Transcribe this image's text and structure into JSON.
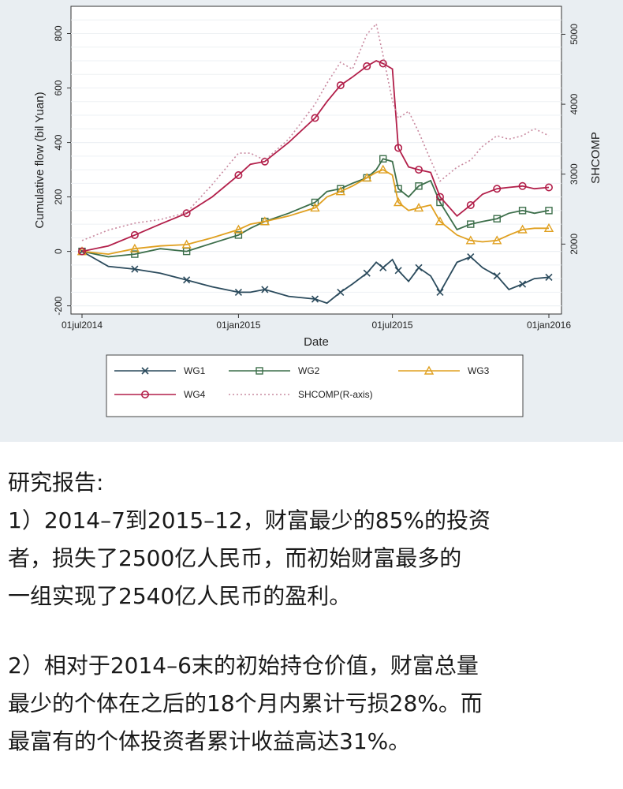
{
  "chart_data": {
    "type": "line",
    "xlabel": "Date",
    "ylabel": "Cumulative flow (bil Yuan)",
    "y2label": "SHCOMP",
    "x_ticks": [
      "01jul2014",
      "01jan2015",
      "01jul2015",
      "01jan2016"
    ],
    "x_range": [
      "2014-07-01",
      "2016-01-01"
    ],
    "ylim": [
      -230,
      900
    ],
    "y_ticks": [
      -200,
      0,
      200,
      400,
      600,
      800
    ],
    "y2lim": [
      1000,
      5400
    ],
    "y2_ticks": [
      2000,
      3000,
      4000,
      5000
    ],
    "grid": true,
    "legend_position": "bottom",
    "x_dates": [
      "2014-07-01",
      "2014-08-01",
      "2014-09-01",
      "2014-10-01",
      "2014-11-01",
      "2014-12-01",
      "2015-01-01",
      "2015-01-15",
      "2015-02-01",
      "2015-03-01",
      "2015-04-01",
      "2015-04-15",
      "2015-05-01",
      "2015-05-15",
      "2015-06-01",
      "2015-06-12",
      "2015-06-20",
      "2015-07-01",
      "2015-07-08",
      "2015-07-20",
      "2015-08-01",
      "2015-08-15",
      "2015-08-26",
      "2015-09-15",
      "2015-10-01",
      "2015-10-15",
      "2015-11-01",
      "2015-11-15",
      "2015-12-01",
      "2015-12-15",
      "2016-01-01"
    ],
    "series": [
      {
        "name": "WG1",
        "axis": "left",
        "color": "#2a4a5c",
        "marker": "x",
        "values": [
          0,
          -55,
          -65,
          -80,
          -105,
          -130,
          -150,
          -150,
          -140,
          -165,
          -175,
          -190,
          -150,
          -120,
          -80,
          -40,
          -60,
          -30,
          -70,
          -110,
          -60,
          -90,
          -150,
          -40,
          -20,
          -60,
          -90,
          -140,
          -120,
          -100,
          -95
        ]
      },
      {
        "name": "WG2",
        "axis": "left",
        "color": "#3c6e4a",
        "marker": "square",
        "values": [
          0,
          -20,
          -10,
          10,
          0,
          30,
          60,
          85,
          110,
          140,
          180,
          220,
          230,
          250,
          270,
          300,
          340,
          330,
          230,
          200,
          240,
          260,
          180,
          80,
          100,
          110,
          120,
          140,
          150,
          140,
          150
        ]
      },
      {
        "name": "WG3",
        "axis": "left",
        "color": "#e0a020",
        "marker": "triangle",
        "values": [
          0,
          -10,
          10,
          20,
          25,
          50,
          80,
          100,
          110,
          130,
          160,
          200,
          220,
          240,
          270,
          290,
          300,
          280,
          180,
          150,
          160,
          170,
          110,
          60,
          40,
          35,
          40,
          60,
          80,
          85,
          85
        ]
      },
      {
        "name": "WG4",
        "axis": "left",
        "color": "#b21f4a",
        "marker": "circle",
        "values": [
          0,
          20,
          60,
          100,
          140,
          200,
          280,
          320,
          330,
          400,
          490,
          550,
          610,
          640,
          680,
          700,
          690,
          670,
          380,
          310,
          300,
          290,
          200,
          130,
          170,
          210,
          230,
          235,
          240,
          230,
          235
        ]
      },
      {
        "name": "SHCOMP(R-axis)",
        "axis": "right",
        "color": "#c98aa0",
        "style": "dotted",
        "values": [
          2050,
          2200,
          2300,
          2350,
          2450,
          2850,
          3300,
          3300,
          3200,
          3500,
          4000,
          4300,
          4600,
          4500,
          5000,
          5150,
          4700,
          4050,
          3800,
          3900,
          3600,
          3200,
          2900,
          3100,
          3200,
          3400,
          3550,
          3500,
          3550,
          3650,
          3550
        ]
      }
    ]
  },
  "legend": [
    {
      "label": "WG1"
    },
    {
      "label": "WG2"
    },
    {
      "label": "WG3"
    },
    {
      "label": "WG4"
    },
    {
      "label": "SHCOMP(R-axis)"
    }
  ],
  "report": {
    "heading": "研究报告:",
    "lines": [
      "1）2014–7到2015–12，财富最少的85%的投资",
      "者，损失了2500亿人民币，而初始财富最多的",
      "一组实现了2540亿人民币的盈利。",
      "",
      "2）相对于2014–6末的初始持仓价值，财富总量",
      "最少的个体在之后的18个月内累计亏损28%。而",
      "最富有的个体投资者累计收益高达31%。"
    ]
  }
}
